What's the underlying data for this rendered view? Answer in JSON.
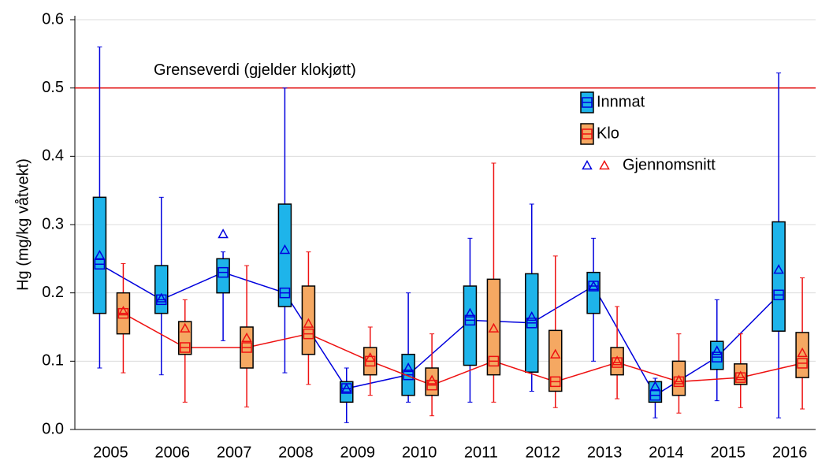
{
  "chart_data": {
    "type": "box",
    "y_label": "Hg (mg/kg våtvekt)",
    "categories": [
      "2005",
      "2006",
      "2007",
      "2008",
      "2009",
      "2010",
      "2011",
      "2012",
      "2013",
      "2014",
      "2015",
      "2016"
    ],
    "ylim": [
      0,
      0.6
    ],
    "yticks": [
      {
        "value": 0,
        "label": "0.0"
      },
      0.1,
      0.2,
      0.3,
      0.4,
      0.5,
      0.6
    ],
    "grid": true,
    "reference_line": {
      "value": 0.5,
      "label": "Grenseverdi (gjelder klokjøtt)",
      "color": "#e00000"
    },
    "mean_label": "Gjennomsnitt",
    "series": [
      {
        "name": "Innmat",
        "color": "#0000dd",
        "fill": "#1eb4ea",
        "min": [
          0.09,
          0.08,
          0.13,
          0.083,
          0.01,
          0.04,
          0.04,
          0.056,
          0.1,
          0.017,
          0.042,
          0.017
        ],
        "q1": [
          0.17,
          0.17,
          0.2,
          0.18,
          0.04,
          0.05,
          0.094,
          0.084,
          0.17,
          0.04,
          0.088,
          0.144
        ],
        "median": [
          0.242,
          0.19,
          0.23,
          0.2,
          0.06,
          0.08,
          0.16,
          0.156,
          0.21,
          0.05,
          0.106,
          0.197
        ],
        "q3": [
          0.34,
          0.24,
          0.25,
          0.33,
          0.07,
          0.11,
          0.21,
          0.228,
          0.23,
          0.07,
          0.129,
          0.304
        ],
        "max": [
          0.56,
          0.34,
          0.26,
          0.5,
          0.09,
          0.2,
          0.28,
          0.33,
          0.28,
          0.075,
          0.19,
          0.522
        ],
        "mean": [
          0.255,
          0.192,
          0.286,
          0.263,
          0.06,
          0.09,
          0.17,
          0.165,
          0.21,
          0.063,
          0.115,
          0.234
        ]
      },
      {
        "name": "Klo",
        "color": "#ee1111",
        "fill": "#f5a862",
        "min": [
          0.083,
          0.04,
          0.033,
          0.066,
          0.05,
          0.02,
          0.04,
          0.032,
          0.045,
          0.024,
          0.032,
          0.03
        ],
        "q1": [
          0.14,
          0.11,
          0.09,
          0.11,
          0.08,
          0.05,
          0.08,
          0.056,
          0.08,
          0.05,
          0.066,
          0.076
        ],
        "median": [
          0.17,
          0.12,
          0.12,
          0.14,
          0.1,
          0.065,
          0.1,
          0.07,
          0.098,
          0.07,
          0.076,
          0.097
        ],
        "q3": [
          0.2,
          0.158,
          0.15,
          0.21,
          0.12,
          0.09,
          0.22,
          0.145,
          0.12,
          0.1,
          0.096,
          0.142
        ],
        "max": [
          0.243,
          0.19,
          0.24,
          0.26,
          0.15,
          0.14,
          0.39,
          0.254,
          0.18,
          0.14,
          0.14,
          0.222
        ],
        "mean": [
          0.173,
          0.148,
          0.134,
          0.155,
          0.105,
          0.072,
          0.148,
          0.11,
          0.1,
          0.072,
          0.078,
          0.112
        ]
      }
    ]
  }
}
